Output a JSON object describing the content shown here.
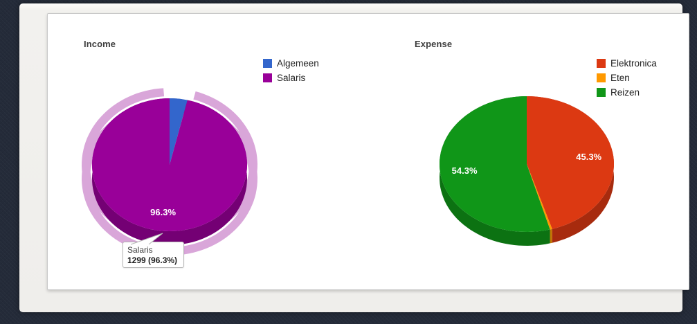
{
  "panel": {},
  "chart_data": [
    {
      "type": "pie",
      "title": "Income",
      "legend_position": "right",
      "series": [
        {
          "label": "Algemeen",
          "percent": 3.7,
          "color": "#3366cc",
          "label_visible": false,
          "display_label": ""
        },
        {
          "label": "Salaris",
          "percent": 96.3,
          "color": "#990099",
          "label_visible": true,
          "display_label": "96.3%",
          "value": 1299
        }
      ],
      "highlight": {
        "slice": "Salaris",
        "halo_color": "#d9a6d9"
      },
      "tooltip": {
        "title": "Salaris",
        "value_text": "1299 (96.3%)"
      }
    },
    {
      "type": "pie",
      "title": "Expense",
      "legend_position": "right",
      "series": [
        {
          "label": "Elektronica",
          "percent": 45.3,
          "color": "#dc3912",
          "label_visible": true,
          "display_label": "45.3%"
        },
        {
          "label": "Eten",
          "percent": 0.4,
          "color": "#ff9900",
          "label_visible": false,
          "display_label": ""
        },
        {
          "label": "Reizen",
          "percent": 54.3,
          "color": "#109618",
          "label_visible": true,
          "display_label": "54.3%"
        }
      ]
    }
  ]
}
